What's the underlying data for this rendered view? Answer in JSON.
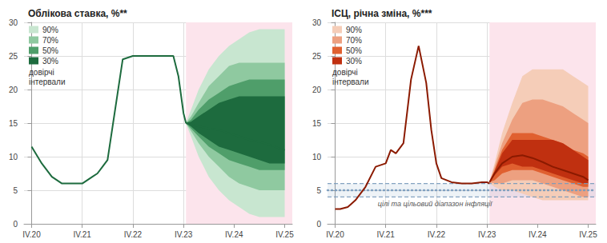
{
  "chart_data": [
    {
      "type": "fan",
      "title": "Облікова ставка, %**",
      "xlim": [
        -0.3,
        10.3
      ],
      "xticks": [
        {
          "value": 0,
          "label": "IV.20"
        },
        {
          "value": 2,
          "label": "IV.21"
        },
        {
          "value": 4,
          "label": "IV.22"
        },
        {
          "value": 6,
          "label": "IV.23"
        },
        {
          "value": 8,
          "label": "IV.24"
        },
        {
          "value": 10,
          "label": "IV.25"
        }
      ],
      "ylim": [
        0,
        30
      ],
      "yticks": [
        0,
        5,
        10,
        15,
        20,
        25,
        30
      ],
      "grid": true,
      "legend": "upper left",
      "legend_title": "довірчі\nінтервали",
      "shaded": {
        "x": [
          6.1,
          10.3
        ],
        "color": "#fce4ec"
      },
      "bands": [
        {
          "name": "90%",
          "color": "#c8e6d0",
          "x": [
            6.1,
            6.3,
            6.6,
            7.0,
            7.4,
            7.8,
            8.2,
            8.6,
            9.0,
            9.4,
            9.8,
            10.0
          ],
          "upper": [
            15.1,
            17.0,
            20.0,
            23.0,
            25.0,
            26.5,
            27.5,
            28.5,
            29.0,
            29.0,
            29.0,
            29.0
          ],
          "lower": [
            14.9,
            13.0,
            10.0,
            7.0,
            5.0,
            3.5,
            2.5,
            1.5,
            1.0,
            1.0,
            1.0,
            1.0
          ]
        },
        {
          "name": "70%",
          "color": "#8fc9a0",
          "x": [
            6.1,
            6.3,
            6.6,
            7.0,
            7.4,
            7.8,
            8.2,
            8.6,
            9.0,
            9.4,
            9.8,
            10.0
          ],
          "upper": [
            15.05,
            16.0,
            18.0,
            20.5,
            22.0,
            23.5,
            24.0,
            24.0,
            24.0,
            24.0,
            24.0,
            24.0
          ],
          "lower": [
            14.95,
            13.8,
            12.0,
            10.0,
            8.5,
            7.0,
            6.0,
            5.5,
            5.0,
            5.0,
            5.0,
            5.0
          ]
        },
        {
          "name": "50%",
          "color": "#4f9e6a",
          "x": [
            6.1,
            6.3,
            6.6,
            7.0,
            7.4,
            7.8,
            8.2,
            8.6,
            9.0,
            9.4,
            9.8,
            10.0
          ],
          "upper": [
            15.03,
            15.5,
            17.0,
            18.5,
            19.5,
            20.5,
            21.0,
            21.5,
            21.5,
            21.5,
            21.5,
            21.5
          ],
          "lower": [
            14.97,
            14.2,
            13.0,
            11.5,
            10.5,
            9.5,
            9.0,
            8.5,
            8.0,
            8.0,
            8.0,
            8.0
          ]
        },
        {
          "name": "30%",
          "color": "#1d6b3e",
          "x": [
            6.1,
            6.3,
            6.6,
            7.0,
            7.4,
            7.8,
            8.2,
            8.6,
            9.0,
            9.4,
            9.8,
            10.0
          ],
          "upper": [
            15.02,
            15.2,
            16.0,
            17.0,
            18.0,
            18.5,
            19.0,
            19.0,
            19.0,
            19.0,
            19.0,
            19.0
          ],
          "lower": [
            14.98,
            14.5,
            13.5,
            12.5,
            11.5,
            11.0,
            10.5,
            10.0,
            9.5,
            9.0,
            9.0,
            9.0
          ]
        }
      ],
      "series": [
        {
          "type": "line",
          "color": "#1d6b3e",
          "x": [
            0,
            0.4,
            0.8,
            1.2,
            1.6,
            2.0,
            2.2,
            2.4,
            2.6,
            2.8,
            3.0,
            3.2,
            3.6,
            4.0,
            4.4,
            4.8,
            5.2,
            5.6,
            5.8,
            6.0,
            6.1
          ],
          "values": [
            11.5,
            9.0,
            7.0,
            6.0,
            6.0,
            6.0,
            6.5,
            7.0,
            7.5,
            8.5,
            9.5,
            14.5,
            24.5,
            25.0,
            25.0,
            25.0,
            25.0,
            25.0,
            22.0,
            16.5,
            15.0
          ]
        },
        {
          "type": "line",
          "color": "#1d6b3e",
          "x": [
            6.1,
            6.3,
            6.6,
            7.0,
            7.4,
            7.8,
            8.2,
            8.6,
            9.0,
            9.4,
            9.8,
            10.0
          ],
          "values": [
            15.0,
            14.8,
            14.5,
            14.2,
            14.0,
            13.5,
            13.0,
            12.5,
            12.2,
            11.8,
            11.2,
            11.0
          ]
        }
      ]
    },
    {
      "type": "fan",
      "title": "ІСЦ, річна зміна, %***",
      "xlim": [
        -0.3,
        10.3
      ],
      "xticks": [
        {
          "value": 0,
          "label": "IV.20"
        },
        {
          "value": 2,
          "label": "IV.21"
        },
        {
          "value": 4,
          "label": "IV.22"
        },
        {
          "value": 6,
          "label": "IV.23"
        },
        {
          "value": 8,
          "label": "IV.24"
        },
        {
          "value": 10,
          "label": "IV.25"
        }
      ],
      "ylim": [
        0,
        30
      ],
      "yticks": [
        0,
        5,
        10,
        15,
        20,
        25,
        30
      ],
      "grid": true,
      "legend": "upper left",
      "legend_title": "довірчі\nінтервали",
      "shaded": {
        "x": [
          6.1,
          10.3
        ],
        "color": "#fce4ec"
      },
      "target": {
        "value": 5.0,
        "upper": 6.0,
        "lower": 4.0,
        "color": "#7799bb",
        "label": "цілі та цільовий діапазон інфляції"
      },
      "bands": [
        {
          "name": "90%",
          "color": "#f5cdb8",
          "x": [
            6.1,
            6.3,
            6.6,
            7.0,
            7.4,
            7.8,
            8.2,
            8.6,
            9.0,
            9.4,
            9.8,
            10.0
          ],
          "upper": [
            6.3,
            9.0,
            13.5,
            18.0,
            22.0,
            23.0,
            23.0,
            23.0,
            23.0,
            22.0,
            21.0,
            20.5
          ],
          "lower": [
            6.1,
            5.5,
            5.0,
            5.0,
            4.5,
            4.0,
            3.5,
            3.5,
            3.5,
            3.5,
            3.5,
            3.5
          ]
        },
        {
          "name": "70%",
          "color": "#eda080",
          "x": [
            6.1,
            6.3,
            6.6,
            7.0,
            7.4,
            7.8,
            8.2,
            8.6,
            9.0,
            9.4,
            9.8,
            10.0
          ],
          "upper": [
            6.25,
            8.5,
            12.0,
            15.5,
            18.0,
            18.5,
            18.5,
            18.0,
            17.5,
            16.5,
            15.5,
            15.0
          ],
          "lower": [
            6.15,
            6.0,
            6.0,
            6.5,
            6.5,
            6.5,
            6.0,
            5.5,
            5.0,
            4.5,
            4.0,
            4.0
          ]
        },
        {
          "name": "50%",
          "color": "#e06030",
          "x": [
            6.1,
            6.3,
            6.6,
            7.0,
            7.4,
            7.8,
            8.2,
            8.6,
            9.0,
            9.4,
            9.8,
            10.0
          ],
          "upper": [
            6.22,
            8.0,
            11.0,
            13.5,
            13.5,
            13.5,
            13.0,
            12.5,
            12.0,
            11.0,
            10.5,
            10.0
          ],
          "lower": [
            6.18,
            6.5,
            7.5,
            8.0,
            8.0,
            8.0,
            7.5,
            7.0,
            6.5,
            6.0,
            5.5,
            5.5
          ]
        },
        {
          "name": "30%",
          "color": "#c03010",
          "x": [
            6.1,
            6.3,
            6.6,
            7.0,
            7.4,
            7.8,
            8.2,
            8.6,
            9.0,
            9.4,
            9.8,
            10.0
          ],
          "upper": [
            6.21,
            7.8,
            10.5,
            12.5,
            12.5,
            12.5,
            12.5,
            12.5,
            12.0,
            11.0,
            10.0,
            9.5
          ],
          "lower": [
            6.19,
            7.2,
            8.5,
            9.0,
            8.5,
            8.5,
            8.0,
            7.5,
            7.0,
            6.5,
            6.0,
            6.0
          ]
        }
      ],
      "series": [
        {
          "type": "line",
          "color": "#8b1a00",
          "x": [
            0,
            0.2,
            0.5,
            0.8,
            1.2,
            1.6,
            2.0,
            2.2,
            2.4,
            2.7,
            3.0,
            3.3,
            3.6,
            3.8,
            4.0,
            4.2,
            4.6,
            5.0,
            5.4,
            5.8,
            6.0,
            6.1
          ],
          "values": [
            2.2,
            2.2,
            2.5,
            3.5,
            5.5,
            8.5,
            9.0,
            11.0,
            10.5,
            12.0,
            21.5,
            26.5,
            21.0,
            14.0,
            9.0,
            6.8,
            6.2,
            6.0,
            6.0,
            6.2,
            6.2,
            6.0
          ]
        },
        {
          "type": "line",
          "color": "#8b1a00",
          "x": [
            6.1,
            6.3,
            6.6,
            7.0,
            7.4,
            7.8,
            8.2,
            8.6,
            9.0,
            9.4,
            9.8,
            10.0
          ],
          "values": [
            6.2,
            7.5,
            9.0,
            10.0,
            10.2,
            9.8,
            9.2,
            8.5,
            8.0,
            7.5,
            7.0,
            6.5
          ]
        }
      ]
    }
  ]
}
